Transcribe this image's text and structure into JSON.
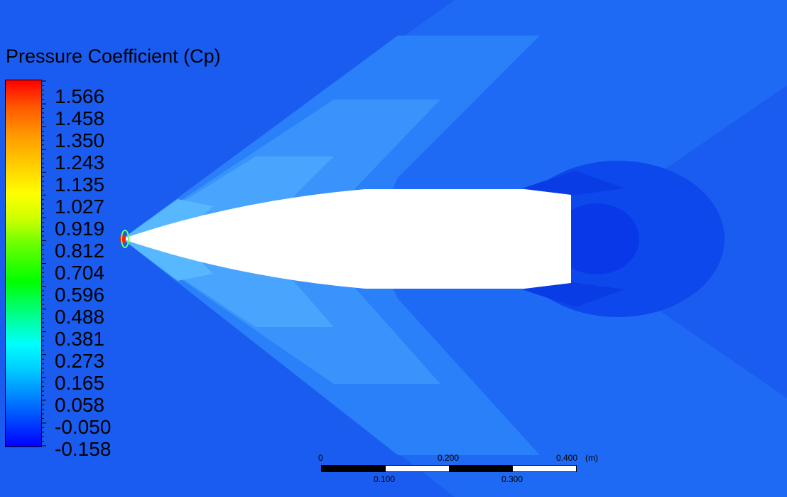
{
  "legend": {
    "title": "Pressure Coefficient (Cp)",
    "tick_labels": [
      "1.566",
      "1.458",
      "1.350",
      "1.243",
      "1.135",
      "1.027",
      "0.919",
      "0.812",
      "0.704",
      "0.596",
      "0.488",
      "0.381",
      "0.273",
      "0.165",
      "0.058",
      "-0.050",
      "-0.158"
    ],
    "range": [
      -0.158,
      1.566
    ],
    "colormap": [
      "#0000ff",
      "#00ffff",
      "#00ff00",
      "#ffff00",
      "#ff0000"
    ]
  },
  "scale_bar": {
    "top_labels": [
      "0",
      "0.200",
      "0.400"
    ],
    "bottom_labels": [
      "0.100",
      "0.300"
    ],
    "unit": "(m)"
  },
  "colors": {
    "background": "#1a5cf0",
    "body": "#ffffff",
    "stagnation": "#ff2000"
  }
}
